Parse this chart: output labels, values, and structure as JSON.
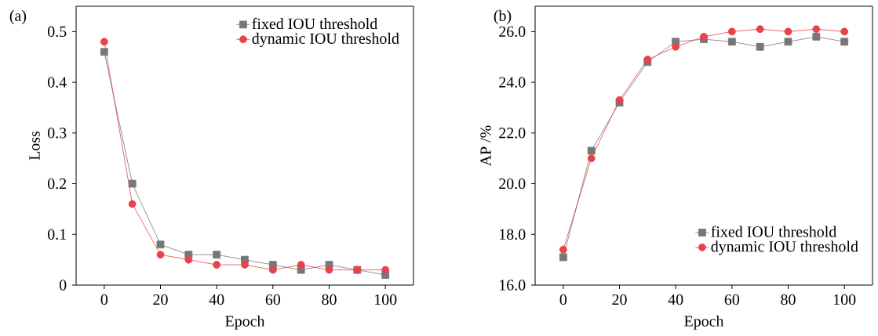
{
  "chart_data": [
    {
      "type": "line",
      "title": "(a)",
      "xlabel": "Epoch",
      "ylabel": "Loss",
      "x": [
        0,
        10,
        20,
        30,
        40,
        50,
        60,
        70,
        80,
        90,
        100
      ],
      "xlim": [
        -10,
        110
      ],
      "ylim": [
        0,
        0.55
      ],
      "xticks": [
        0,
        20,
        40,
        60,
        80,
        100
      ],
      "yticks": [
        0,
        0.1,
        0.2,
        0.3,
        0.4,
        0.5
      ],
      "legend": "top right",
      "series": [
        {
          "name": "fixed IOU threshold",
          "color": "#77777b",
          "marker": "square",
          "values": [
            0.46,
            0.2,
            0.08,
            0.06,
            0.06,
            0.05,
            0.04,
            0.03,
            0.04,
            0.03,
            0.02
          ]
        },
        {
          "name": "dynamic IOU threshold",
          "color": "#e8424a",
          "marker": "circle",
          "values": [
            0.48,
            0.16,
            0.06,
            0.05,
            0.04,
            0.04,
            0.03,
            0.04,
            0.03,
            0.03,
            0.03
          ]
        }
      ]
    },
    {
      "type": "line",
      "title": "(b)",
      "xlabel": "Epoch",
      "ylabel": "AP /%",
      "x": [
        0,
        10,
        20,
        30,
        40,
        50,
        60,
        70,
        80,
        90,
        100
      ],
      "xlim": [
        -10,
        110
      ],
      "ylim": [
        16,
        27
      ],
      "xticks": [
        0,
        20,
        40,
        60,
        80,
        100
      ],
      "yticks": [
        {
          "value": 16,
          "label": "16.0"
        },
        {
          "value": 18,
          "label": "18.0"
        },
        {
          "value": 20,
          "label": "20.0"
        },
        {
          "value": 22,
          "label": "22.0"
        },
        {
          "value": 24,
          "label": "24.0"
        },
        {
          "value": 26,
          "label": "26.0"
        }
      ],
      "legend": "bottom right",
      "series": [
        {
          "name": "fixed IOU threshold",
          "color": "#77777b",
          "marker": "square",
          "values": [
            17.1,
            21.3,
            23.2,
            24.8,
            25.6,
            25.7,
            25.6,
            25.4,
            25.6,
            25.8,
            25.6
          ]
        },
        {
          "name": "dynamic IOU threshold",
          "color": "#e8424a",
          "marker": "circle",
          "values": [
            17.4,
            21.0,
            23.3,
            24.9,
            25.4,
            25.8,
            26.0,
            26.1,
            26.0,
            26.1,
            26.0
          ]
        }
      ]
    }
  ]
}
